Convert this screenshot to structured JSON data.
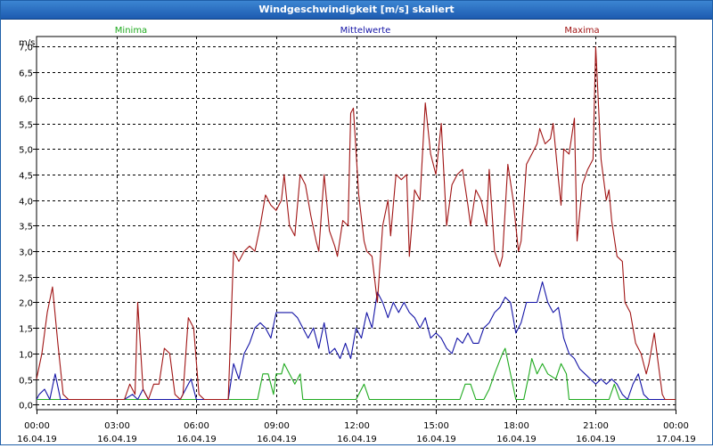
{
  "window": {
    "title": "Windgeschwindigkeit [m/s] skaliert"
  },
  "chart_data": {
    "type": "line",
    "title": "Windgeschwindigkeit [m/s] skaliert",
    "ylabel": "m/s",
    "ylim": [
      -0.1,
      7.2
    ],
    "yticks": [
      0.0,
      0.5,
      1.0,
      1.5,
      2.0,
      2.5,
      3.0,
      3.5,
      4.0,
      4.5,
      5.0,
      5.5,
      6.0,
      6.5,
      7.0
    ],
    "ytick_labels": [
      "0,0",
      "0,5",
      "1,0",
      "1,5",
      "2,0",
      "2,5",
      "3,0",
      "3,5",
      "4,0",
      "4,5",
      "5,0",
      "5,5",
      "6,0",
      "6,5",
      "7,0"
    ],
    "xlim": [
      0,
      24
    ],
    "xticks": [
      0,
      3,
      6,
      9,
      12,
      15,
      18,
      21,
      24
    ],
    "xtick_time_labels": [
      "00:00",
      "03:00",
      "06:00",
      "09:00",
      "12:00",
      "15:00",
      "18:00",
      "21:00",
      "00:00"
    ],
    "xtick_date_labels": [
      "16.04.19",
      "16.04.19",
      "16.04.19",
      "16.04.19",
      "16.04.19",
      "16.04.19",
      "16.04.19",
      "16.04.19",
      "17.04.19"
    ],
    "grid": true,
    "legend_placement": "top",
    "series": [
      {
        "name": "Minima",
        "color": "#1faa1f",
        "points": [
          [
            0,
            0.1
          ],
          [
            7.2,
            0.1
          ],
          [
            7.5,
            0.1
          ],
          [
            7.8,
            0.1
          ],
          [
            8.1,
            0.1
          ],
          [
            8.3,
            0.1
          ],
          [
            8.5,
            0.6
          ],
          [
            8.7,
            0.6
          ],
          [
            8.9,
            0.2
          ],
          [
            9.0,
            0.6
          ],
          [
            9.2,
            0.6
          ],
          [
            9.3,
            0.8
          ],
          [
            9.5,
            0.6
          ],
          [
            9.7,
            0.4
          ],
          [
            9.9,
            0.6
          ],
          [
            10.0,
            0.1
          ],
          [
            12.0,
            0.1
          ],
          [
            12.3,
            0.4
          ],
          [
            12.5,
            0.1
          ],
          [
            15.0,
            0.1
          ],
          [
            15.9,
            0.1
          ],
          [
            16.1,
            0.4
          ],
          [
            16.3,
            0.4
          ],
          [
            16.5,
            0.1
          ],
          [
            16.8,
            0.1
          ],
          [
            17.0,
            0.3
          ],
          [
            17.2,
            0.6
          ],
          [
            17.5,
            1.0
          ],
          [
            17.6,
            1.1
          ],
          [
            17.8,
            0.6
          ],
          [
            18.0,
            0.1
          ],
          [
            18.3,
            0.1
          ],
          [
            18.5,
            0.6
          ],
          [
            18.6,
            0.9
          ],
          [
            18.8,
            0.6
          ],
          [
            19.0,
            0.8
          ],
          [
            19.2,
            0.6
          ],
          [
            19.5,
            0.5
          ],
          [
            19.7,
            0.8
          ],
          [
            19.9,
            0.6
          ],
          [
            20.0,
            0.1
          ],
          [
            21.5,
            0.1
          ],
          [
            21.7,
            0.4
          ],
          [
            21.9,
            0.1
          ],
          [
            22.1,
            0.1
          ],
          [
            24.0,
            0.1
          ]
        ]
      },
      {
        "name": "Mittelwerte",
        "color": "#1414a6",
        "points": [
          [
            0,
            0.1
          ],
          [
            0.1,
            0.2
          ],
          [
            0.3,
            0.3
          ],
          [
            0.5,
            0.1
          ],
          [
            0.7,
            0.6
          ],
          [
            0.9,
            0.1
          ],
          [
            1.1,
            0.1
          ],
          [
            3.3,
            0.1
          ],
          [
            3.6,
            0.2
          ],
          [
            3.8,
            0.1
          ],
          [
            4.0,
            0.3
          ],
          [
            4.2,
            0.1
          ],
          [
            4.5,
            0.1
          ],
          [
            5.4,
            0.1
          ],
          [
            5.6,
            0.3
          ],
          [
            5.8,
            0.5
          ],
          [
            6.0,
            0.1
          ],
          [
            7.2,
            0.1
          ],
          [
            7.4,
            0.8
          ],
          [
            7.6,
            0.5
          ],
          [
            7.8,
            1.0
          ],
          [
            8.0,
            1.2
          ],
          [
            8.2,
            1.5
          ],
          [
            8.4,
            1.6
          ],
          [
            8.6,
            1.5
          ],
          [
            8.8,
            1.3
          ],
          [
            9.0,
            1.8
          ],
          [
            9.2,
            1.8
          ],
          [
            9.4,
            1.8
          ],
          [
            9.6,
            1.8
          ],
          [
            9.8,
            1.7
          ],
          [
            10.0,
            1.5
          ],
          [
            10.2,
            1.3
          ],
          [
            10.4,
            1.5
          ],
          [
            10.6,
            1.1
          ],
          [
            10.8,
            1.6
          ],
          [
            11.0,
            1.0
          ],
          [
            11.2,
            1.1
          ],
          [
            11.4,
            0.9
          ],
          [
            11.6,
            1.2
          ],
          [
            11.8,
            0.9
          ],
          [
            12.0,
            1.5
          ],
          [
            12.2,
            1.3
          ],
          [
            12.4,
            1.8
          ],
          [
            12.6,
            1.5
          ],
          [
            12.8,
            2.2
          ],
          [
            13.0,
            2.0
          ],
          [
            13.2,
            1.7
          ],
          [
            13.4,
            2.0
          ],
          [
            13.6,
            1.8
          ],
          [
            13.8,
            2.0
          ],
          [
            14.0,
            1.8
          ],
          [
            14.2,
            1.7
          ],
          [
            14.4,
            1.5
          ],
          [
            14.6,
            1.7
          ],
          [
            14.8,
            1.3
          ],
          [
            15.0,
            1.4
          ],
          [
            15.2,
            1.3
          ],
          [
            15.4,
            1.1
          ],
          [
            15.6,
            1.0
          ],
          [
            15.8,
            1.3
          ],
          [
            16.0,
            1.2
          ],
          [
            16.2,
            1.4
          ],
          [
            16.4,
            1.2
          ],
          [
            16.6,
            1.2
          ],
          [
            16.8,
            1.5
          ],
          [
            17.0,
            1.6
          ],
          [
            17.2,
            1.8
          ],
          [
            17.4,
            1.9
          ],
          [
            17.6,
            2.1
          ],
          [
            17.8,
            2.0
          ],
          [
            18.0,
            1.4
          ],
          [
            18.2,
            1.6
          ],
          [
            18.4,
            2.0
          ],
          [
            18.6,
            2.0
          ],
          [
            18.8,
            2.0
          ],
          [
            19.0,
            2.4
          ],
          [
            19.2,
            2.0
          ],
          [
            19.4,
            1.8
          ],
          [
            19.6,
            1.9
          ],
          [
            19.8,
            1.3
          ],
          [
            20.0,
            1.0
          ],
          [
            20.2,
            0.9
          ],
          [
            20.4,
            0.7
          ],
          [
            20.6,
            0.6
          ],
          [
            20.8,
            0.5
          ],
          [
            21.0,
            0.4
          ],
          [
            21.2,
            0.5
          ],
          [
            21.4,
            0.4
          ],
          [
            21.6,
            0.5
          ],
          [
            21.8,
            0.4
          ],
          [
            22.0,
            0.2
          ],
          [
            22.2,
            0.1
          ],
          [
            22.4,
            0.4
          ],
          [
            22.6,
            0.6
          ],
          [
            22.8,
            0.2
          ],
          [
            23.0,
            0.1
          ],
          [
            24.0,
            0.1
          ]
        ]
      },
      {
        "name": "Maxima",
        "color": "#a01414",
        "points": [
          [
            0,
            0.5
          ],
          [
            0.2,
            1.0
          ],
          [
            0.4,
            1.8
          ],
          [
            0.6,
            2.3
          ],
          [
            0.8,
            1.2
          ],
          [
            1.0,
            0.2
          ],
          [
            1.2,
            0.1
          ],
          [
            3.3,
            0.1
          ],
          [
            3.5,
            0.4
          ],
          [
            3.7,
            0.2
          ],
          [
            3.8,
            2.0
          ],
          [
            4.0,
            0.3
          ],
          [
            4.2,
            0.1
          ],
          [
            4.4,
            0.4
          ],
          [
            4.6,
            0.4
          ],
          [
            4.8,
            1.1
          ],
          [
            5.0,
            1.0
          ],
          [
            5.2,
            0.2
          ],
          [
            5.4,
            0.1
          ],
          [
            5.5,
            0.2
          ],
          [
            5.7,
            1.7
          ],
          [
            5.9,
            1.5
          ],
          [
            6.1,
            0.2
          ],
          [
            6.3,
            0.1
          ],
          [
            7.2,
            0.1
          ],
          [
            7.4,
            3.0
          ],
          [
            7.6,
            2.8
          ],
          [
            7.8,
            3.0
          ],
          [
            8.0,
            3.1
          ],
          [
            8.2,
            3.0
          ],
          [
            8.4,
            3.5
          ],
          [
            8.6,
            4.1
          ],
          [
            8.8,
            3.9
          ],
          [
            9.0,
            3.8
          ],
          [
            9.2,
            4.0
          ],
          [
            9.3,
            4.5
          ],
          [
            9.5,
            3.5
          ],
          [
            9.7,
            3.3
          ],
          [
            9.9,
            4.5
          ],
          [
            10.1,
            4.3
          ],
          [
            10.3,
            3.7
          ],
          [
            10.5,
            3.2
          ],
          [
            10.6,
            3.0
          ],
          [
            10.8,
            4.5
          ],
          [
            11.0,
            3.4
          ],
          [
            11.2,
            3.1
          ],
          [
            11.3,
            2.9
          ],
          [
            11.5,
            3.6
          ],
          [
            11.7,
            3.5
          ],
          [
            11.8,
            5.7
          ],
          [
            11.9,
            5.8
          ],
          [
            12.1,
            4.1
          ],
          [
            12.3,
            3.2
          ],
          [
            12.4,
            3.0
          ],
          [
            12.6,
            2.9
          ],
          [
            12.8,
            2.0
          ],
          [
            13.0,
            3.5
          ],
          [
            13.2,
            4.0
          ],
          [
            13.3,
            3.3
          ],
          [
            13.5,
            4.5
          ],
          [
            13.7,
            4.4
          ],
          [
            13.9,
            4.5
          ],
          [
            14.0,
            2.9
          ],
          [
            14.2,
            4.2
          ],
          [
            14.4,
            4.0
          ],
          [
            14.6,
            5.9
          ],
          [
            14.8,
            4.9
          ],
          [
            15.0,
            4.5
          ],
          [
            15.2,
            5.5
          ],
          [
            15.4,
            3.5
          ],
          [
            15.6,
            4.3
          ],
          [
            15.8,
            4.5
          ],
          [
            16.0,
            4.6
          ],
          [
            16.2,
            3.9
          ],
          [
            16.3,
            3.5
          ],
          [
            16.5,
            4.2
          ],
          [
            16.7,
            4.0
          ],
          [
            16.9,
            3.5
          ],
          [
            17.0,
            4.6
          ],
          [
            17.2,
            3.0
          ],
          [
            17.4,
            2.7
          ],
          [
            17.5,
            2.9
          ],
          [
            17.7,
            4.7
          ],
          [
            17.9,
            4.0
          ],
          [
            18.1,
            3.0
          ],
          [
            18.2,
            3.2
          ],
          [
            18.4,
            4.7
          ],
          [
            18.6,
            4.9
          ],
          [
            18.8,
            5.1
          ],
          [
            18.9,
            5.4
          ],
          [
            19.1,
            5.1
          ],
          [
            19.3,
            5.2
          ],
          [
            19.4,
            5.5
          ],
          [
            19.6,
            4.4
          ],
          [
            19.7,
            3.9
          ],
          [
            19.8,
            5.0
          ],
          [
            20.0,
            4.9
          ],
          [
            20.2,
            5.6
          ],
          [
            20.3,
            3.2
          ],
          [
            20.5,
            4.3
          ],
          [
            20.7,
            4.6
          ],
          [
            20.9,
            4.8
          ],
          [
            21.0,
            7.0
          ],
          [
            21.2,
            4.8
          ],
          [
            21.4,
            4.0
          ],
          [
            21.5,
            4.2
          ],
          [
            21.6,
            3.6
          ],
          [
            21.8,
            2.9
          ],
          [
            22.0,
            2.8
          ],
          [
            22.1,
            2.0
          ],
          [
            22.3,
            1.8
          ],
          [
            22.5,
            1.2
          ],
          [
            22.7,
            1.0
          ],
          [
            22.9,
            0.6
          ],
          [
            23.0,
            0.8
          ],
          [
            23.2,
            1.4
          ],
          [
            23.3,
            1.0
          ],
          [
            23.5,
            0.2
          ],
          [
            23.6,
            0.1
          ],
          [
            24.0,
            0.1
          ]
        ]
      }
    ]
  }
}
